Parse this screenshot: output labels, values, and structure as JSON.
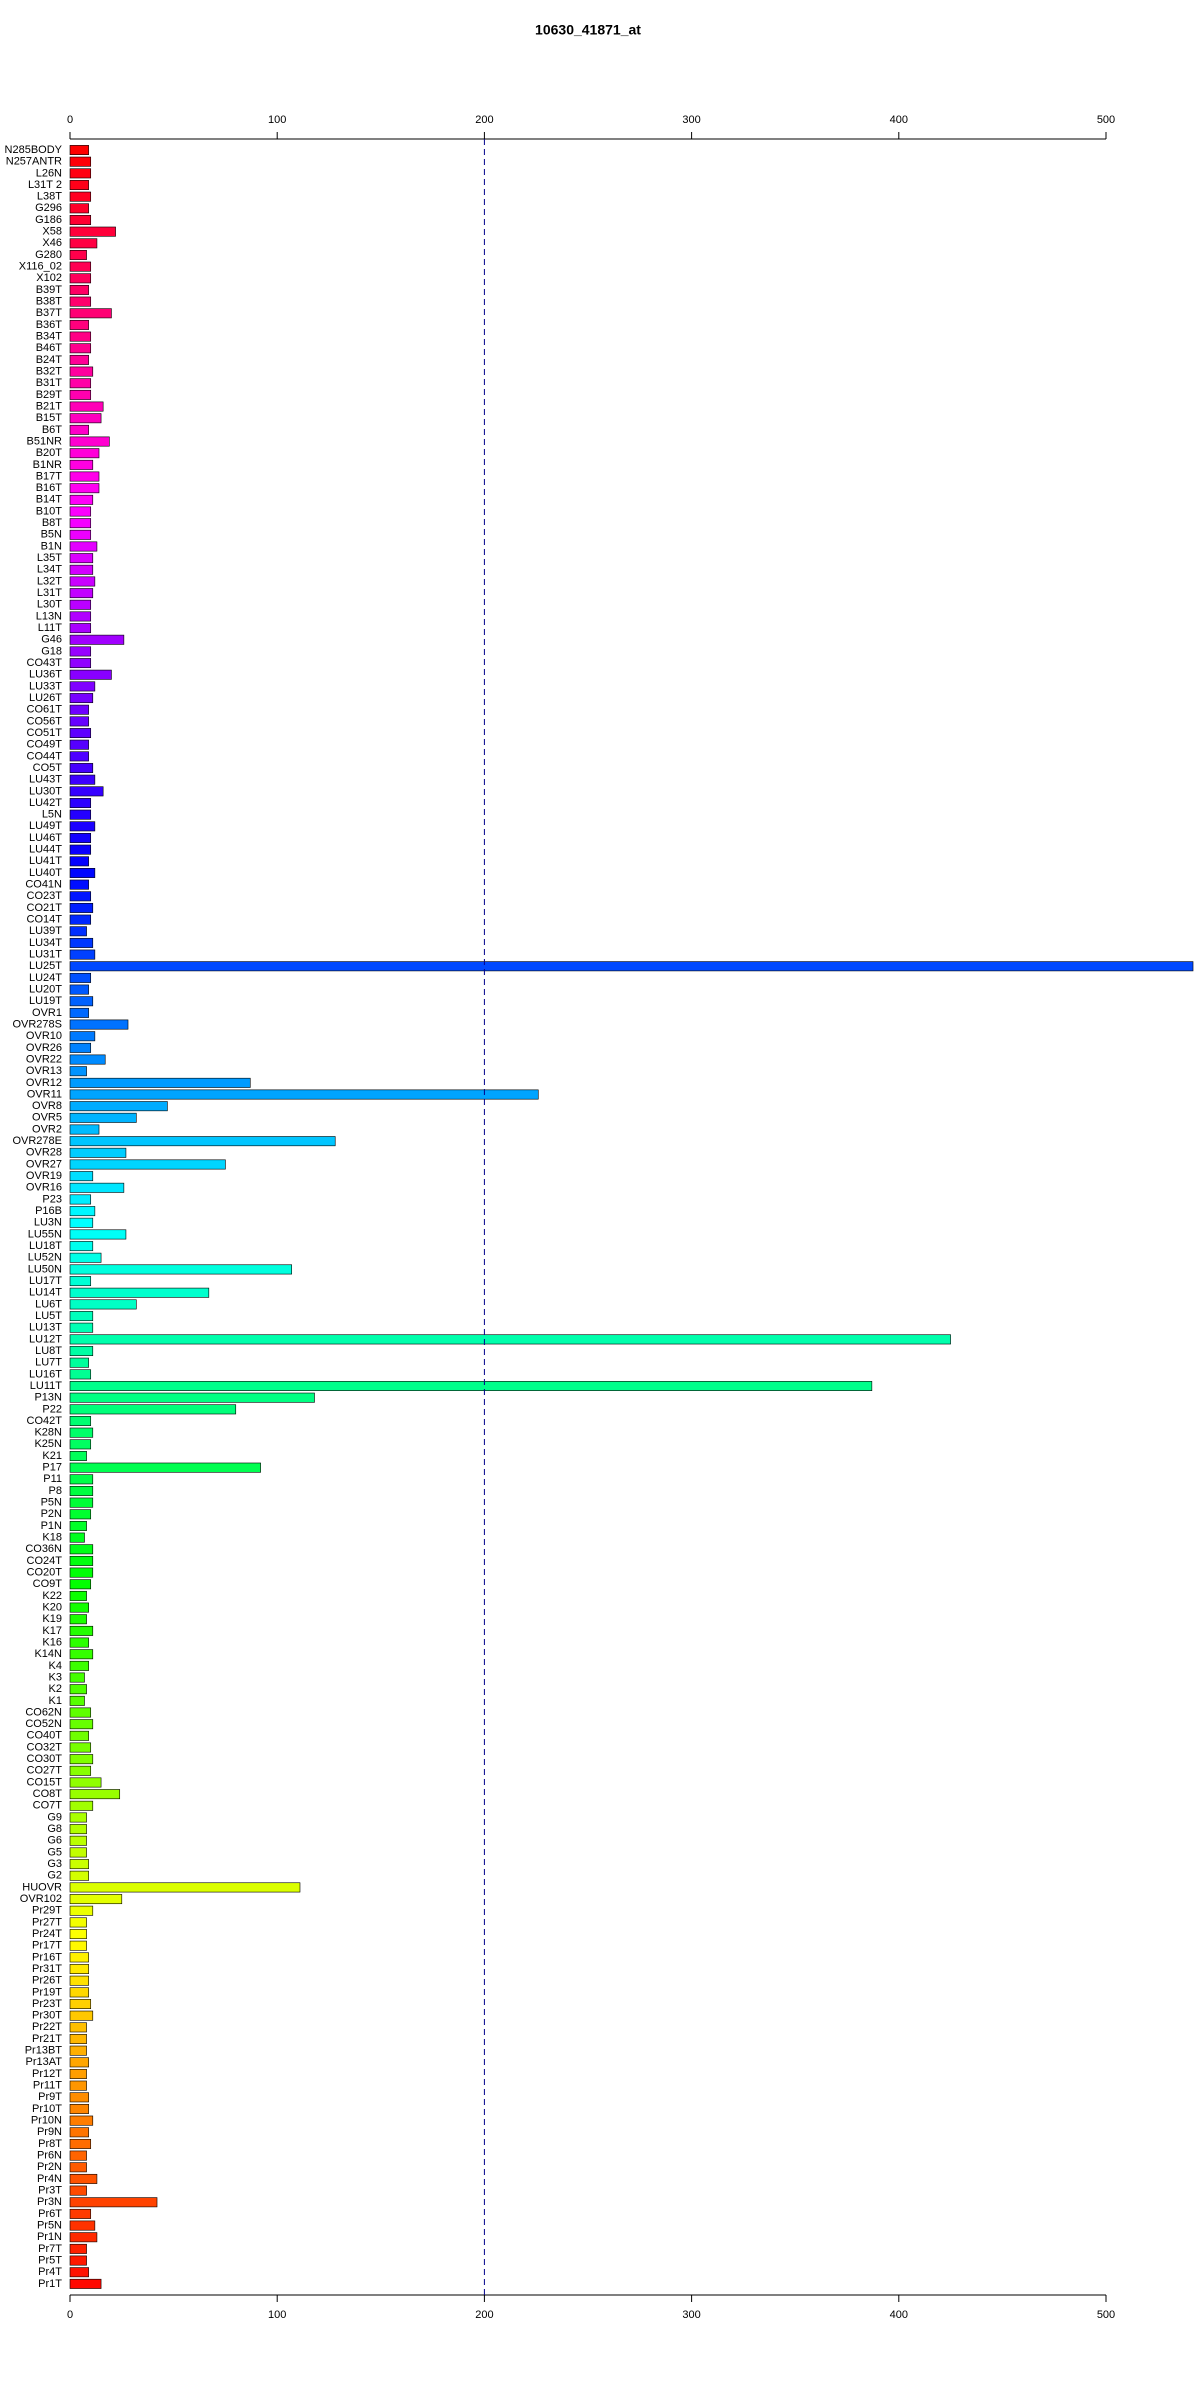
{
  "chart_data": {
    "type": "barh",
    "title": "10630_41871_at",
    "categories": [
      "N285BODY",
      "N257ANTR",
      "L26N",
      "L31T 2",
      "L38T",
      "G296",
      "G186",
      "X58",
      "X46",
      "G280",
      "X116_02",
      "X102",
      "B39T",
      "B38T",
      "B37T",
      "B36T",
      "B34T",
      "B46T",
      "B24T",
      "B32T",
      "B31T",
      "B29T",
      "B21T",
      "B15T",
      "B6T",
      "B51NR",
      "B20T",
      "B1NR",
      "B17T",
      "B16T",
      "B14T",
      "B10T",
      "B8T",
      "B5N",
      "B1N",
      "L35T",
      "L34T",
      "L32T",
      "L31T",
      "L30T",
      "L13N",
      "L11T",
      "G46",
      "G18",
      "CO43T",
      "LU36T",
      "LU33T",
      "LU26T",
      "CO61T",
      "CO56T",
      "CO51T",
      "CO49T",
      "CO44T",
      "CO5T",
      "LU43T",
      "LU30T",
      "LU42T",
      "L5N",
      "LU49T",
      "LU46T",
      "LU44T",
      "LU41T",
      "LU40T",
      "CO41N",
      "CO23T",
      "CO21T",
      "CO14T",
      "LU39T",
      "LU34T",
      "LU31T",
      "LU25T",
      "LU24T",
      "LU20T",
      "LU19T",
      "OVR1",
      "OVR278S",
      "OVR10",
      "OVR26",
      "OVR22",
      "OVR13",
      "OVR12",
      "OVR11",
      "OVR8",
      "OVR5",
      "OVR2",
      "OVR278E",
      "OVR28",
      "OVR27",
      "OVR19",
      "OVR16",
      "P23",
      "P16B",
      "LU3N",
      "LU55N",
      "LU18T",
      "LU52N",
      "LU50N",
      "LU17T",
      "LU14T",
      "LU6T",
      "LU5T",
      "LU13T",
      "LU12T",
      "LU8T",
      "LU7T",
      "LU16T",
      "LU11T",
      "P13N",
      "P22",
      "CO42T",
      "K28N",
      "K25N",
      "K21",
      "P17",
      "P11",
      "P8",
      "P5N",
      "P2N",
      "P1N",
      "K18",
      "CO36N",
      "CO24T",
      "CO20T",
      "CO9T",
      "K22",
      "K20",
      "K19",
      "K17",
      "K16",
      "K14N",
      "K4",
      "K3",
      "K2",
      "K1",
      "CO62N",
      "CO52N",
      "CO40T",
      "CO32T",
      "CO30T",
      "CO27T",
      "CO15T",
      "CO8T",
      "CO7T",
      "G9",
      "G8",
      "G6",
      "G5",
      "G3",
      "G2",
      "HUOVR",
      "OVR102",
      "Pr29T",
      "Pr27T",
      "Pr24T",
      "Pr17T",
      "Pr16T",
      "Pr31T",
      "Pr26T",
      "Pr19T",
      "Pr23T",
      "Pr30T",
      "Pr22T",
      "Pr21T",
      "Pr13BT",
      "Pr13AT",
      "Pr12T",
      "Pr11T",
      "Pr9T",
      "Pr10T",
      "Pr10N",
      "Pr9N",
      "Pr8T",
      "Pr6N",
      "Pr2N",
      "Pr4N",
      "Pr3T",
      "Pr3N",
      "Pr6T",
      "Pr5N",
      "Pr1N",
      "Pr7T",
      "Pr5T",
      "Pr4T",
      "Pr1T"
    ],
    "values": [
      9,
      10,
      10,
      9,
      10,
      9,
      10,
      22,
      13,
      8,
      10,
      10,
      9,
      10,
      20,
      9,
      10,
      10,
      9,
      11,
      10,
      10,
      16,
      15,
      9,
      19,
      14,
      11,
      14,
      14,
      11,
      10,
      10,
      10,
      13,
      11,
      11,
      12,
      11,
      10,
      10,
      10,
      26,
      10,
      10,
      20,
      12,
      11,
      9,
      9,
      10,
      9,
      9,
      11,
      12,
      16,
      10,
      10,
      12,
      10,
      10,
      9,
      12,
      9,
      10,
      11,
      10,
      8,
      11,
      12,
      542,
      10,
      9,
      11,
      9,
      28,
      12,
      10,
      17,
      8,
      87,
      226,
      47,
      32,
      14,
      128,
      27,
      75,
      11,
      26,
      10,
      12,
      11,
      27,
      11,
      15,
      107,
      10,
      67,
      32,
      11,
      11,
      425,
      11,
      9,
      10,
      387,
      118,
      80,
      10,
      11,
      10,
      8,
      92,
      11,
      11,
      11,
      10,
      8,
      7,
      11,
      11,
      11,
      10,
      8,
      9,
      8,
      11,
      9,
      11,
      9,
      7,
      8,
      7,
      10,
      11,
      9,
      10,
      11,
      10,
      15,
      24,
      11,
      8,
      8,
      8,
      8,
      9,
      9,
      111,
      25,
      11,
      8,
      8,
      8,
      9,
      9,
      9,
      9,
      10,
      11,
      8,
      8,
      8,
      9,
      8,
      8,
      9,
      9,
      11,
      9,
      10,
      8,
      8,
      13,
      8,
      42,
      10,
      12,
      13,
      8,
      8,
      9,
      15
    ],
    "colors": "rainbow-reversed",
    "xlim": [
      0,
      500
    ],
    "xticks": [
      0,
      100,
      200,
      300,
      400,
      500
    ],
    "reference_line": 200
  }
}
